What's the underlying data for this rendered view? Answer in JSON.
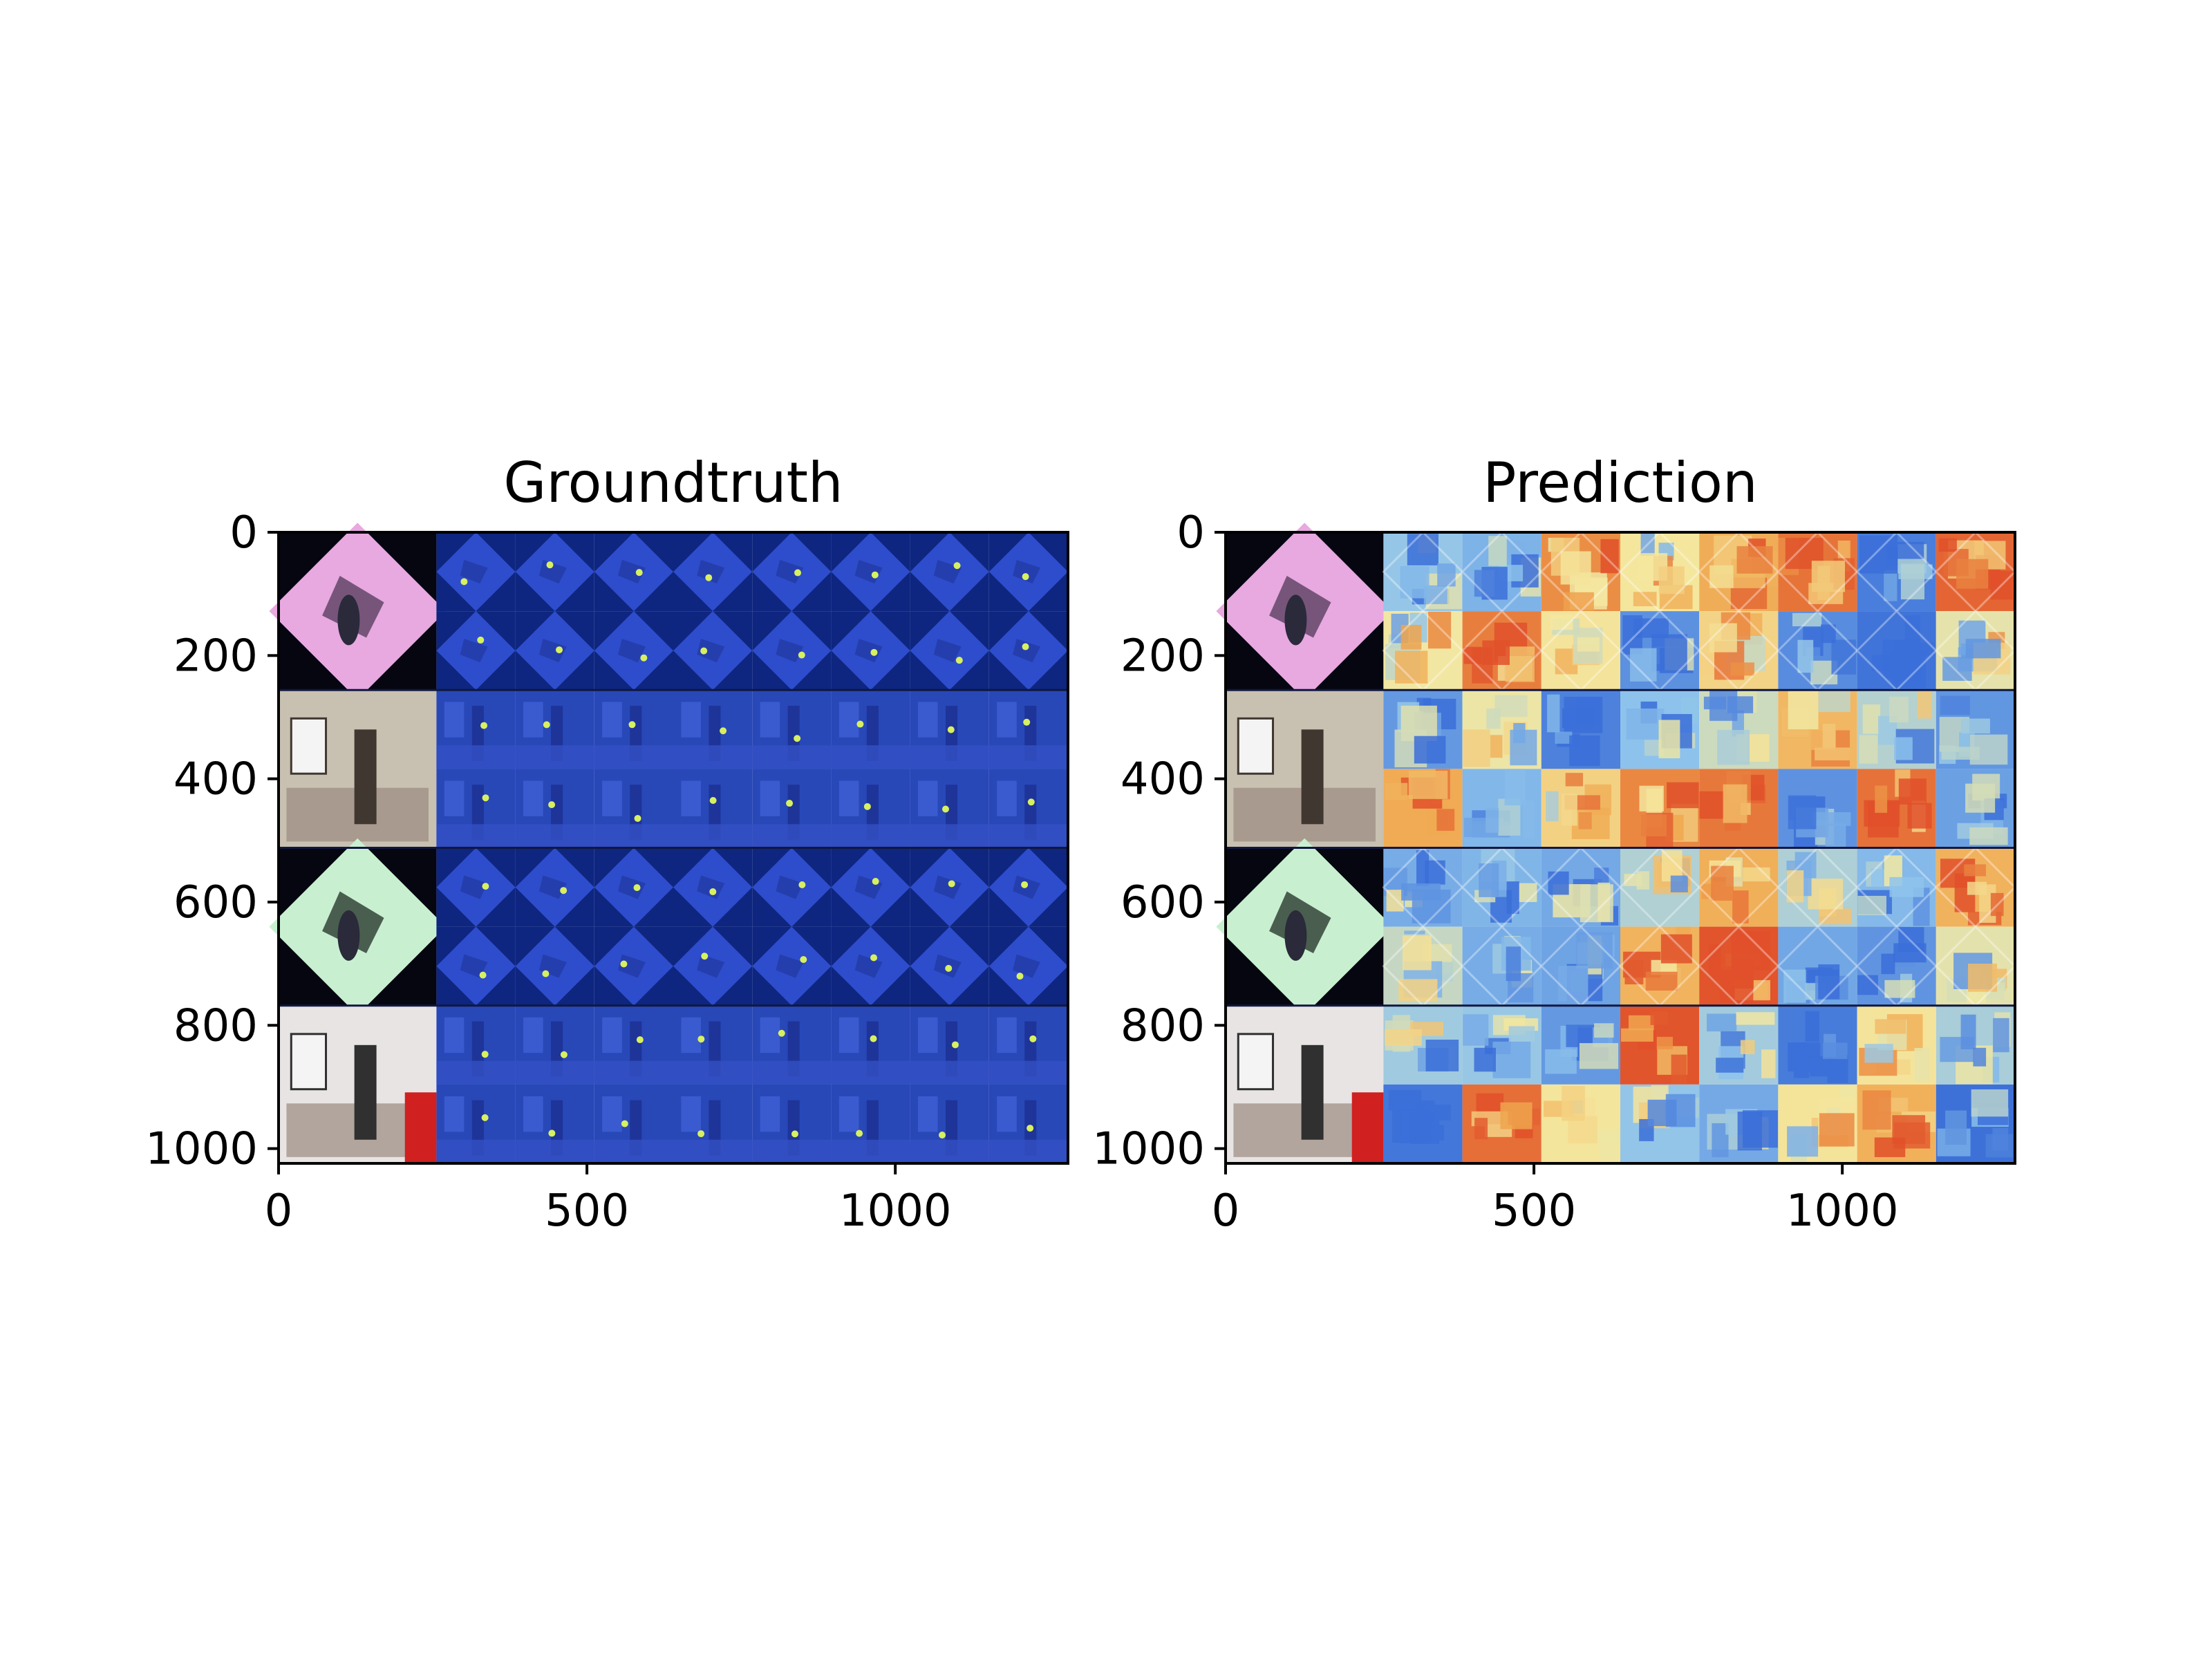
{
  "chart_data": [
    {
      "type": "heatmap",
      "title": "Groundtruth",
      "xlim": [
        0,
        1280
      ],
      "ylim": [
        1024,
        0
      ],
      "x_ticks": [
        0,
        500,
        1000
      ],
      "y_ticks": [
        0,
        200,
        400,
        600,
        800,
        1000
      ],
      "x_tick_labels": [
        "0",
        "500",
        "1000"
      ],
      "y_tick_labels": [
        "0",
        "200",
        "400",
        "600",
        "800",
        "1000"
      ],
      "grid": false,
      "rows": 4,
      "tile_columns": 8,
      "tile_rows_per_scene": 2,
      "overlay_color": "#2f4fd0",
      "marker_color": "#d8f060"
    },
    {
      "type": "heatmap",
      "title": "Prediction",
      "xlim": [
        0,
        1280
      ],
      "ylim": [
        1024,
        0
      ],
      "x_ticks": [
        0,
        500,
        1000
      ],
      "y_ticks": [
        0,
        200,
        400,
        600,
        800,
        1000
      ],
      "x_tick_labels": [
        "0",
        "500",
        "1000"
      ],
      "y_tick_labels": [
        "0",
        "200",
        "400",
        "600",
        "800",
        "1000"
      ],
      "grid": false,
      "rows": 4,
      "tile_columns": 8,
      "tile_rows_per_scene": 2,
      "colormap": [
        "#3b6fd8",
        "#8fc4ec",
        "#f4e8a0",
        "#f0a850",
        "#e0502a"
      ]
    }
  ],
  "scenes": [
    {
      "type": "rotated",
      "tone": "#e8a8e0",
      "dark": "#5a4060"
    },
    {
      "type": "room",
      "tone": "#c8c0b0",
      "dark": "#403830"
    },
    {
      "type": "rotated",
      "tone": "#c8f0d0",
      "dark": "#2a3a30"
    },
    {
      "type": "room",
      "tone": "#e8e4e4",
      "dark": "#303030"
    }
  ]
}
